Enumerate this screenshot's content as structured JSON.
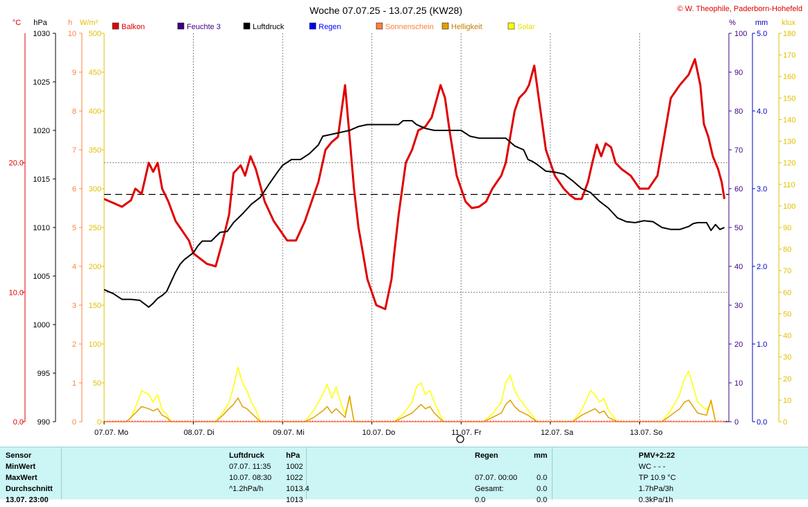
{
  "title": "Woche 07.07.25 - 13.07.25 (KW28)",
  "copyright": "© W. Theophile, Paderborn-Hohefeld",
  "axis_units": {
    "temp": "°C",
    "pressure": "hPa",
    "hours": "h",
    "solar": "W/m²",
    "percent": "%",
    "rain": "mm",
    "lux": "klux"
  },
  "legend": [
    {
      "label": "Balkon",
      "color": "#e00000"
    },
    {
      "label": "Feuchte 3",
      "color": "#400080"
    },
    {
      "label": "Luftdruck",
      "color": "#000000"
    },
    {
      "label": "Regen",
      "color": "#0000ff"
    },
    {
      "label": "Sonnenschein",
      "color": "#ff8040"
    },
    {
      "label": "Helligkeit",
      "color": "#e0a000"
    },
    {
      "label": "Solar",
      "color": "#ffff00"
    }
  ],
  "chart_data": {
    "type": "line",
    "x_days": [
      "07.07. Mo",
      "08.07. Di",
      "09.07. Mi",
      "10.07. Do",
      "11.07. Fr",
      "12.07. Sa",
      "13.07. So"
    ],
    "axes": {
      "temp": {
        "ticks": [
          "20.0",
          "10.0",
          "0.0"
        ],
        "values": [
          20,
          10,
          0
        ],
        "range": [
          0,
          30
        ]
      },
      "pressure": {
        "ticks": [
          "1030",
          "1025",
          "1020",
          "1015",
          "1010",
          "1005",
          "1000",
          "995",
          "990"
        ],
        "range": [
          990,
          1030
        ]
      },
      "hours": {
        "ticks": [
          "10",
          "9",
          "8",
          "7",
          "6",
          "5",
          "4",
          "3",
          "2",
          "1",
          "0"
        ],
        "range": [
          0,
          10
        ]
      },
      "solar": {
        "ticks": [
          "500",
          "450",
          "400",
          "350",
          "300",
          "250",
          "200",
          "150",
          "100",
          "50",
          "0"
        ],
        "range": [
          0,
          500
        ]
      },
      "percent": {
        "ticks": [
          "100",
          "90",
          "80",
          "70",
          "60",
          "50",
          "40",
          "30",
          "20",
          "10",
          "0"
        ],
        "range": [
          0,
          100
        ]
      },
      "rain": {
        "ticks": [
          "5.0",
          "4.0",
          "3.0",
          "2.0",
          "1.0",
          "0.0"
        ],
        "range": [
          0,
          5
        ]
      },
      "lux": {
        "ticks": [
          "180",
          "170",
          "160",
          "150",
          "140",
          "130",
          "120",
          "110",
          "100",
          "90",
          "80",
          "70",
          "60",
          "50",
          "40",
          "30",
          "20",
          "10",
          "0"
        ],
        "range": [
          0,
          180
        ]
      }
    },
    "pressure_average": 1013.4,
    "series": [
      {
        "name": "Balkon",
        "axis": "temp",
        "color": "#e00000",
        "x": [
          0,
          0.1,
          0.2,
          0.3,
          0.35,
          0.42,
          0.5,
          0.55,
          0.6,
          0.65,
          0.72,
          0.8,
          0.85,
          0.95,
          1.0,
          1.15,
          1.25,
          1.33,
          1.4,
          1.45,
          1.53,
          1.58,
          1.64,
          1.7,
          1.8,
          1.9,
          1.95,
          2.05,
          2.15,
          2.25,
          2.35,
          2.4,
          2.48,
          2.55,
          2.62,
          2.7,
          2.75,
          2.8,
          2.85,
          2.9,
          2.95,
          3.05,
          3.15,
          3.22,
          3.25,
          3.3,
          3.38,
          3.45,
          3.52,
          3.6,
          3.67,
          3.73,
          3.77,
          3.82,
          3.87,
          3.95,
          4.05,
          4.12,
          4.2,
          4.28,
          4.35,
          4.45,
          4.5,
          4.55,
          4.6,
          4.65,
          4.72,
          4.76,
          4.82,
          4.87,
          4.95,
          5.05,
          5.15,
          5.22,
          5.28,
          5.35,
          5.42,
          5.47,
          5.52,
          5.57,
          5.62,
          5.68,
          5.73,
          5.8,
          5.9,
          6.0,
          6.1,
          6.2,
          6.25,
          6.3,
          6.35,
          6.45,
          6.55,
          6.62,
          6.68,
          6.72,
          6.77,
          6.82,
          6.88,
          6.92,
          6.95
        ],
        "y": [
          17.2,
          16.9,
          16.6,
          17.1,
          18.0,
          17.6,
          20.0,
          19.3,
          20.0,
          18.0,
          17.0,
          15.5,
          15.0,
          14.0,
          13.0,
          12.2,
          12.0,
          14.0,
          16.0,
          19.2,
          19.8,
          19.0,
          20.5,
          19.5,
          17.0,
          15.5,
          15.0,
          14.0,
          14.0,
          15.5,
          17.5,
          18.5,
          21.0,
          21.6,
          22.0,
          26.0,
          22.0,
          18.0,
          15.0,
          13.0,
          11.0,
          9.0,
          8.7,
          11.0,
          13.0,
          16.0,
          20.0,
          21.0,
          22.5,
          22.8,
          23.5,
          25.0,
          26.0,
          25.0,
          22.5,
          19.0,
          17.0,
          16.5,
          16.6,
          17.0,
          18.0,
          19.0,
          20.0,
          22.0,
          24.0,
          25.0,
          25.5,
          26.0,
          27.5,
          25.0,
          21.0,
          19.0,
          18.0,
          17.5,
          17.2,
          17.2,
          18.5,
          20.0,
          21.4,
          20.5,
          21.5,
          21.2,
          20.0,
          19.5,
          19.0,
          18.0,
          18.0,
          19.0,
          21.0,
          23.0,
          25.0,
          26.0,
          26.8,
          28.0,
          26.0,
          23.0,
          22.0,
          20.5,
          19.5,
          18.5,
          17.2
        ]
      },
      {
        "name": "Luftdruck",
        "axis": "pressure",
        "color": "#000000",
        "x": [
          0,
          0.05,
          0.1,
          0.2,
          0.3,
          0.4,
          0.5,
          0.55,
          0.6,
          0.65,
          0.7,
          0.75,
          0.8,
          0.85,
          0.9,
          1.0,
          1.05,
          1.1,
          1.2,
          1.3,
          1.38,
          1.45,
          1.55,
          1.65,
          1.75,
          1.85,
          1.95,
          2.0,
          2.1,
          2.2,
          2.3,
          2.4,
          2.45,
          2.5,
          2.55,
          2.65,
          2.75,
          2.85,
          2.95,
          3.0,
          3.1,
          3.2,
          3.3,
          3.35,
          3.45,
          3.5,
          3.6,
          3.7,
          3.8,
          3.9,
          4.0,
          4.1,
          4.2,
          4.3,
          4.4,
          4.5,
          4.6,
          4.7,
          4.75,
          4.8,
          4.85,
          4.95,
          5.05,
          5.15,
          5.25,
          5.35,
          5.45,
          5.55,
          5.65,
          5.75,
          5.85,
          5.95,
          6.05,
          6.15,
          6.25,
          6.35,
          6.45,
          6.55,
          6.6,
          6.65,
          6.7,
          6.75,
          6.8,
          6.85,
          6.9,
          6.95
        ],
        "y": [
          1003.6,
          1003.4,
          1003.2,
          1002.6,
          1002.6,
          1002.5,
          1001.8,
          1002.2,
          1002.7,
          1003.0,
          1003.4,
          1004.4,
          1005.4,
          1006.2,
          1006.7,
          1007.4,
          1008.1,
          1008.6,
          1008.6,
          1009.5,
          1009.6,
          1010.5,
          1011.4,
          1012.4,
          1013.1,
          1014.5,
          1015.8,
          1016.4,
          1017.0,
          1017.0,
          1017.6,
          1018.5,
          1019.4,
          1019.5,
          1019.6,
          1019.8,
          1020.0,
          1020.4,
          1020.6,
          1020.6,
          1020.6,
          1020.6,
          1020.6,
          1021.0,
          1021.0,
          1020.6,
          1020.2,
          1020.0,
          1020.0,
          1020.0,
          1020.0,
          1019.4,
          1019.2,
          1019.2,
          1019.2,
          1019.2,
          1018.4,
          1018.0,
          1017.0,
          1016.8,
          1016.5,
          1015.8,
          1015.7,
          1015.5,
          1014.8,
          1014.0,
          1013.6,
          1012.7,
          1012.0,
          1011.0,
          1010.6,
          1010.5,
          1010.7,
          1010.6,
          1010.0,
          1009.8,
          1009.8,
          1010.1,
          1010.4,
          1010.5,
          1010.5,
          1010.5,
          1009.7,
          1010.3,
          1009.8,
          1010.0
        ]
      },
      {
        "name": "Solar",
        "axis": "solar",
        "color": "#ffff00",
        "x": [
          0,
          0.25,
          0.3,
          0.35,
          0.42,
          0.5,
          0.55,
          0.6,
          0.65,
          0.7,
          0.75,
          1.25,
          1.33,
          1.4,
          1.45,
          1.5,
          1.55,
          1.6,
          1.65,
          1.7,
          1.75,
          2.25,
          2.35,
          2.45,
          2.5,
          2.55,
          2.6,
          2.65,
          2.7,
          2.75,
          2.8,
          3.25,
          3.35,
          3.45,
          3.5,
          3.55,
          3.6,
          3.65,
          3.7,
          3.8,
          4.25,
          4.35,
          4.45,
          4.5,
          4.55,
          4.6,
          4.65,
          4.75,
          4.85,
          5.25,
          5.35,
          5.45,
          5.5,
          5.55,
          5.6,
          5.65,
          5.75,
          6.25,
          6.35,
          6.45,
          6.5,
          6.55,
          6.6,
          6.65,
          6.75,
          6.8,
          6.85
        ],
        "y": [
          0,
          0,
          5,
          18,
          40,
          35,
          25,
          35,
          15,
          10,
          0,
          0,
          12,
          25,
          45,
          70,
          50,
          40,
          25,
          15,
          0,
          0,
          15,
          35,
          48,
          30,
          45,
          25,
          10,
          30,
          0,
          0,
          10,
          25,
          45,
          50,
          35,
          40,
          25,
          0,
          0,
          10,
          25,
          50,
          60,
          40,
          30,
          15,
          0,
          0,
          15,
          40,
          35,
          25,
          30,
          15,
          0,
          0,
          15,
          35,
          55,
          65,
          45,
          25,
          15,
          25,
          0
        ]
      },
      {
        "name": "Helligkeit",
        "axis": "lux",
        "color": "#e0a000",
        "x": [
          0,
          0.25,
          0.3,
          0.35,
          0.42,
          0.5,
          0.55,
          0.6,
          0.65,
          0.7,
          0.75,
          1.25,
          1.33,
          1.4,
          1.45,
          1.5,
          1.55,
          1.6,
          1.65,
          1.7,
          1.75,
          2.25,
          2.35,
          2.45,
          2.5,
          2.55,
          2.6,
          2.65,
          2.7,
          2.75,
          2.8,
          3.25,
          3.35,
          3.45,
          3.5,
          3.55,
          3.6,
          3.65,
          3.7,
          3.8,
          4.25,
          4.35,
          4.45,
          4.5,
          4.55,
          4.6,
          4.65,
          4.75,
          4.85,
          5.25,
          5.35,
          5.45,
          5.5,
          5.55,
          5.6,
          5.65,
          5.75,
          6.25,
          6.35,
          6.45,
          6.5,
          6.55,
          6.6,
          6.65,
          6.75,
          6.8,
          6.85
        ],
        "y": [
          0,
          0,
          2,
          4,
          7,
          6,
          5,
          6,
          3,
          2,
          0,
          0,
          3,
          6,
          8,
          11,
          7,
          6,
          4,
          2,
          0,
          0,
          2,
          5,
          7,
          4,
          6,
          4,
          2,
          12,
          0,
          0,
          2,
          4,
          6,
          8,
          6,
          7,
          4,
          0,
          0,
          2,
          4,
          8,
          10,
          7,
          5,
          3,
          0,
          0,
          3,
          5,
          6,
          4,
          5,
          2,
          0,
          0,
          3,
          6,
          9,
          10,
          7,
          4,
          3,
          10,
          0
        ]
      },
      {
        "name": "Sonnenschein",
        "axis": "hours",
        "color": "#ff8040",
        "x": [
          0,
          6.95
        ],
        "y": [
          0,
          0
        ]
      }
    ]
  },
  "table": {
    "header": {
      "sensor": "Sensor",
      "c1": "Luftdruck",
      "c2": "hPa",
      "c3": "Regen",
      "c4": "mm",
      "c5": "PMV+2:22"
    },
    "rows": [
      {
        "label": "MinWert",
        "c1": "07.07.  11:35",
        "c2": "1002",
        "c3": "",
        "c4": "",
        "c5": "WC - - -"
      },
      {
        "label": "MaxWert",
        "c1": "10.07.  08:30",
        "c2": "1022",
        "c3": "07.07.  00:00",
        "c4": "0.0",
        "c5": "TP 10.9 °C"
      },
      {
        "label": "Durchschnitt",
        "c1": "^1.2hPa/h",
        "c2": "1013.4",
        "c3": "Gesamt:",
        "c4": "0.0",
        "c5": "1.7hPa/3h"
      },
      {
        "label": "13.07.  23:00",
        "c1": "",
        "c2": "1013",
        "c3": "0.0",
        "c4": "0.0",
        "c5": "0.3kPa/1h"
      }
    ]
  }
}
